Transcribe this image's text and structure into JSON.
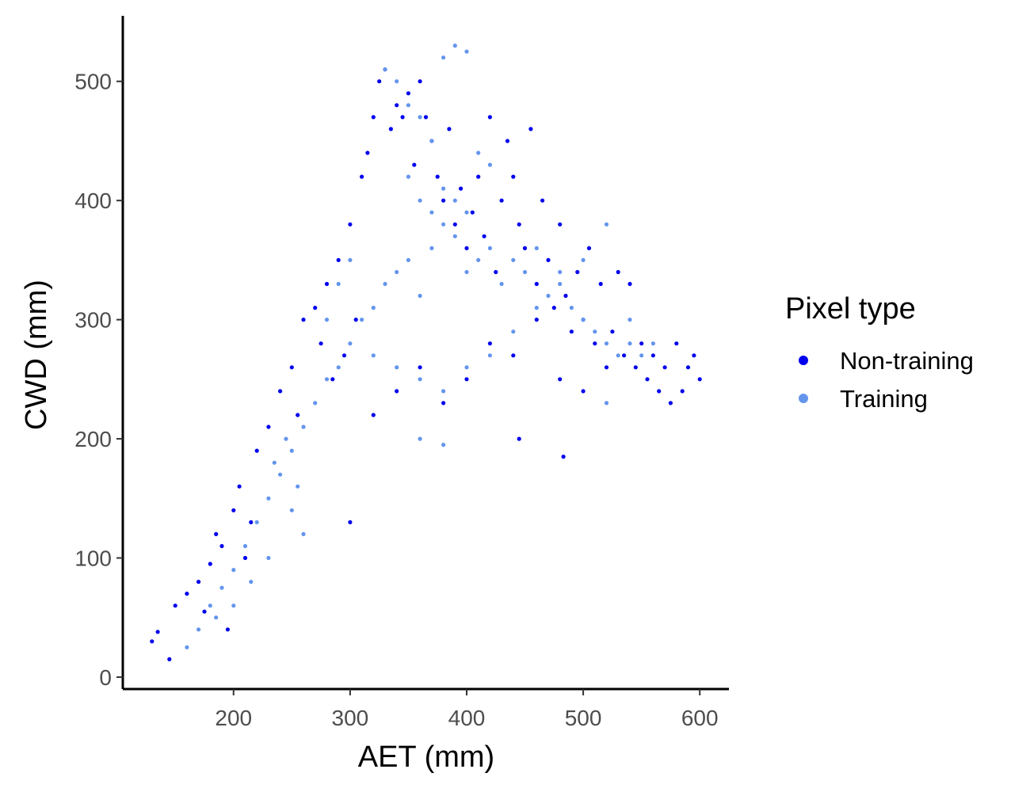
{
  "chart_data": {
    "type": "scatter",
    "xlabel": "AET (mm)",
    "ylabel": "CWD (mm)",
    "xlim": [
      105,
      625
    ],
    "ylim": [
      -10,
      555
    ],
    "x_ticks": [
      200,
      300,
      400,
      500,
      600
    ],
    "y_ticks": [
      0,
      100,
      200,
      300,
      400,
      500
    ],
    "grid": false,
    "legend": {
      "title": "Pixel type",
      "position": "right",
      "entries": [
        "Non-training",
        "Training"
      ]
    },
    "series": [
      {
        "name": "Non-training",
        "color": "#0000EE",
        "points": [
          [
            130,
            30
          ],
          [
            135,
            38
          ],
          [
            145,
            15
          ],
          [
            150,
            60
          ],
          [
            160,
            70
          ],
          [
            170,
            80
          ],
          [
            175,
            55
          ],
          [
            180,
            95
          ],
          [
            185,
            120
          ],
          [
            190,
            110
          ],
          [
            195,
            40
          ],
          [
            200,
            140
          ],
          [
            205,
            160
          ],
          [
            210,
            100
          ],
          [
            215,
            130
          ],
          [
            220,
            190
          ],
          [
            230,
            210
          ],
          [
            240,
            240
          ],
          [
            250,
            260
          ],
          [
            255,
            220
          ],
          [
            260,
            300
          ],
          [
            270,
            310
          ],
          [
            275,
            280
          ],
          [
            280,
            330
          ],
          [
            285,
            250
          ],
          [
            290,
            350
          ],
          [
            295,
            270
          ],
          [
            300,
            380
          ],
          [
            305,
            300
          ],
          [
            310,
            420
          ],
          [
            315,
            440
          ],
          [
            320,
            470
          ],
          [
            325,
            500
          ],
          [
            330,
            510
          ],
          [
            335,
            460
          ],
          [
            340,
            480
          ],
          [
            345,
            470
          ],
          [
            350,
            490
          ],
          [
            355,
            430
          ],
          [
            360,
            500
          ],
          [
            365,
            470
          ],
          [
            370,
            450
          ],
          [
            375,
            420
          ],
          [
            380,
            400
          ],
          [
            385,
            460
          ],
          [
            390,
            380
          ],
          [
            395,
            410
          ],
          [
            400,
            360
          ],
          [
            405,
            390
          ],
          [
            410,
            420
          ],
          [
            415,
            370
          ],
          [
            420,
            470
          ],
          [
            425,
            340
          ],
          [
            430,
            400
          ],
          [
            435,
            450
          ],
          [
            440,
            420
          ],
          [
            445,
            380
          ],
          [
            450,
            360
          ],
          [
            455,
            460
          ],
          [
            460,
            330
          ],
          [
            465,
            400
          ],
          [
            470,
            350
          ],
          [
            475,
            310
          ],
          [
            480,
            380
          ],
          [
            485,
            320
          ],
          [
            490,
            290
          ],
          [
            495,
            340
          ],
          [
            500,
            300
          ],
          [
            505,
            360
          ],
          [
            510,
            280
          ],
          [
            515,
            330
          ],
          [
            520,
            260
          ],
          [
            525,
            290
          ],
          [
            530,
            340
          ],
          [
            535,
            270
          ],
          [
            540,
            330
          ],
          [
            545,
            260
          ],
          [
            550,
            280
          ],
          [
            555,
            250
          ],
          [
            560,
            270
          ],
          [
            565,
            240
          ],
          [
            570,
            260
          ],
          [
            575,
            230
          ],
          [
            580,
            280
          ],
          [
            585,
            240
          ],
          [
            590,
            260
          ],
          [
            595,
            270
          ],
          [
            600,
            250
          ],
          [
            483,
            185
          ],
          [
            445,
            200
          ],
          [
            300,
            130
          ],
          [
            320,
            220
          ],
          [
            340,
            240
          ],
          [
            360,
            260
          ],
          [
            380,
            230
          ],
          [
            400,
            250
          ],
          [
            420,
            280
          ],
          [
            440,
            270
          ],
          [
            460,
            300
          ],
          [
            480,
            250
          ],
          [
            500,
            240
          ]
        ]
      },
      {
        "name": "Training",
        "color": "#6495ED",
        "points": [
          [
            160,
            25
          ],
          [
            170,
            40
          ],
          [
            180,
            60
          ],
          [
            190,
            75
          ],
          [
            200,
            90
          ],
          [
            210,
            110
          ],
          [
            215,
            80
          ],
          [
            220,
            130
          ],
          [
            230,
            150
          ],
          [
            235,
            180
          ],
          [
            240,
            170
          ],
          [
            245,
            200
          ],
          [
            250,
            190
          ],
          [
            255,
            160
          ],
          [
            260,
            210
          ],
          [
            270,
            230
          ],
          [
            280,
            250
          ],
          [
            290,
            260
          ],
          [
            300,
            280
          ],
          [
            310,
            300
          ],
          [
            320,
            310
          ],
          [
            330,
            330
          ],
          [
            340,
            340
          ],
          [
            350,
            350
          ],
          [
            360,
            320
          ],
          [
            370,
            360
          ],
          [
            380,
            380
          ],
          [
            390,
            370
          ],
          [
            400,
            340
          ],
          [
            410,
            350
          ],
          [
            420,
            360
          ],
          [
            430,
            330
          ],
          [
            440,
            350
          ],
          [
            450,
            340
          ],
          [
            460,
            360
          ],
          [
            470,
            320
          ],
          [
            480,
            340
          ],
          [
            490,
            310
          ],
          [
            500,
            300
          ],
          [
            510,
            290
          ],
          [
            520,
            280
          ],
          [
            530,
            270
          ],
          [
            540,
            280
          ],
          [
            550,
            270
          ],
          [
            560,
            280
          ],
          [
            330,
            510
          ],
          [
            340,
            500
          ],
          [
            350,
            480
          ],
          [
            360,
            470
          ],
          [
            370,
            450
          ],
          [
            380,
            520
          ],
          [
            390,
            530
          ],
          [
            400,
            525
          ],
          [
            410,
            440
          ],
          [
            420,
            430
          ],
          [
            350,
            420
          ],
          [
            360,
            400
          ],
          [
            370,
            390
          ],
          [
            380,
            410
          ],
          [
            390,
            400
          ],
          [
            400,
            390
          ],
          [
            300,
            350
          ],
          [
            290,
            330
          ],
          [
            280,
            300
          ],
          [
            320,
            270
          ],
          [
            340,
            260
          ],
          [
            360,
            250
          ],
          [
            380,
            240
          ],
          [
            400,
            260
          ],
          [
            420,
            270
          ],
          [
            440,
            290
          ],
          [
            460,
            310
          ],
          [
            480,
            330
          ],
          [
            500,
            350
          ],
          [
            520,
            380
          ],
          [
            360,
            200
          ],
          [
            380,
            195
          ],
          [
            520,
            230
          ],
          [
            540,
            300
          ],
          [
            250,
            140
          ],
          [
            260,
            120
          ],
          [
            230,
            100
          ],
          [
            200,
            60
          ],
          [
            185,
            50
          ]
        ]
      }
    ]
  }
}
